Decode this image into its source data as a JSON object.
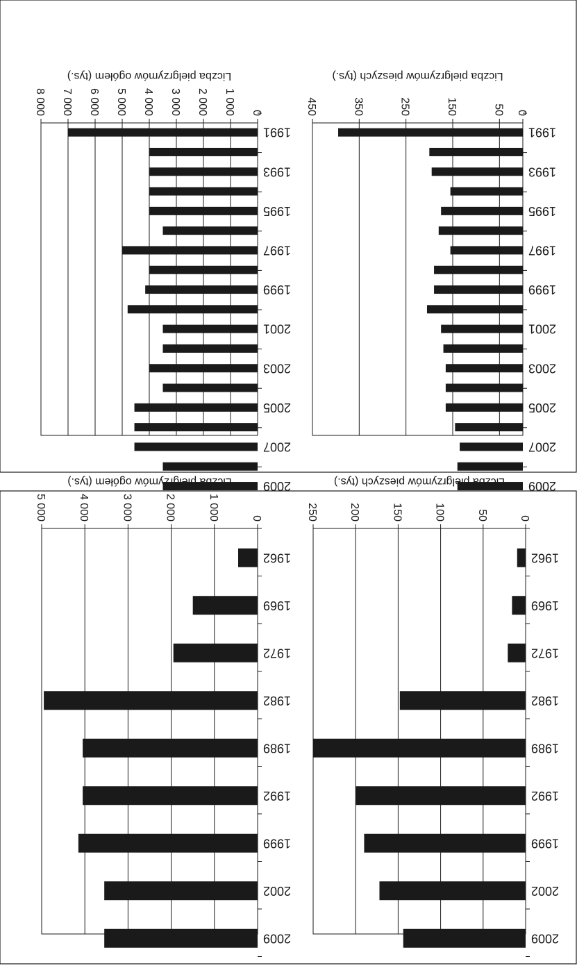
{
  "chart_data": [
    {
      "type": "bar",
      "ylabel": "Liczba pielgrzymów ogółem (tys.)",
      "categories": [
        "1991",
        "1992",
        "1993",
        "1994",
        "1995",
        "1996",
        "1997",
        "1998",
        "1999",
        "2000",
        "2001",
        "2002",
        "2003",
        "2004",
        "2005",
        "2006",
        "2007",
        "2008",
        "2009"
      ],
      "category_tick_labels": [
        "1991",
        "1993",
        "1995",
        "1997",
        "1999",
        "2001",
        "2003",
        "2005",
        "2007",
        "2009"
      ],
      "values": [
        7000,
        4000,
        4000,
        4000,
        4000,
        3500,
        5000,
        4000,
        4150,
        4800,
        3500,
        3500,
        4000,
        3500,
        4550,
        4550,
        4550,
        3500,
        3500
      ],
      "ylim": [
        0,
        8000
      ],
      "ticks": [
        0,
        1000,
        2000,
        3000,
        4000,
        5000,
        6000,
        7000,
        8000
      ],
      "tick_labels": [
        "0",
        "1 000",
        "2 000",
        "3 000",
        "4 000",
        "5 000",
        "6 000",
        "7 000",
        "8 000"
      ],
      "grid": true,
      "orientation": "rotated 180°"
    },
    {
      "type": "bar",
      "ylabel": "Liczba pielgrzymów pieszych (tys.)",
      "categories": [
        "1991",
        "1992",
        "1993",
        "1994",
        "1995",
        "1996",
        "1997",
        "1998",
        "1999",
        "2000",
        "2001",
        "2002",
        "2003",
        "2004",
        "2005",
        "2006",
        "2007",
        "2008",
        "2009"
      ],
      "category_tick_labels": [
        "1991",
        "1993",
        "1995",
        "1997",
        "1999",
        "2001",
        "2003",
        "2005",
        "2007",
        "2009"
      ],
      "values": [
        395,
        200,
        195,
        155,
        175,
        180,
        155,
        190,
        190,
        205,
        175,
        170,
        165,
        165,
        165,
        145,
        135,
        140,
        140
      ],
      "ylim": [
        0,
        450
      ],
      "ticks": [
        0,
        50,
        150,
        250,
        350,
        450
      ],
      "tick_labels": [
        "0",
        "50",
        "150",
        "250",
        "350",
        "450"
      ],
      "grid": true,
      "orientation": "rotated 180°"
    },
    {
      "type": "bar",
      "ylabel": "Liczba pielgrzymów ogółem (tys.)",
      "categories": [
        "1962",
        "1969",
        "1972",
        "1982",
        "1989",
        "1992",
        "1999",
        "2002",
        "2009"
      ],
      "values": [
        450,
        1500,
        1950,
        4950,
        4050,
        4050,
        4150,
        3550,
        3550
      ],
      "ylim": [
        0,
        5000
      ],
      "ticks": [
        0,
        1000,
        2000,
        3000,
        4000,
        5000
      ],
      "tick_labels": [
        "0",
        "1 000",
        "2 000",
        "3 000",
        "4 000",
        "5 000"
      ],
      "grid": true,
      "orientation": "rotated 180°"
    },
    {
      "type": "bar",
      "ylabel": "Liczba pielgrzymów pieszych (tys.)",
      "categories": [
        "1962",
        "1969",
        "1972",
        "1982",
        "1989",
        "1992",
        "1999",
        "2002",
        "2009"
      ],
      "values": [
        10,
        16,
        21,
        148,
        250,
        200,
        190,
        172,
        144
      ],
      "ylim": [
        0,
        250
      ],
      "ticks": [
        0,
        50,
        100,
        150,
        200,
        250
      ],
      "tick_labels": [
        "0",
        "50",
        "100",
        "150",
        "200",
        "250"
      ],
      "grid": true,
      "orientation": "rotated 180°"
    }
  ],
  "colors": {
    "bar": "#1a1a1a",
    "grid": "#1a1a1a",
    "frame": "#1a1a1a"
  }
}
